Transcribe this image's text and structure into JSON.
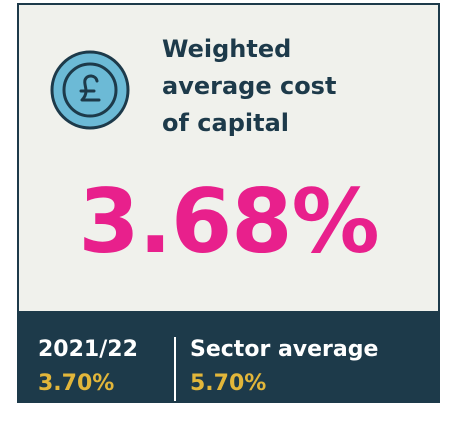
{
  "card": {
    "title_lines": [
      "Weighted",
      "average cost",
      "of capital"
    ],
    "headline": "3.68%",
    "stats": [
      {
        "label": "2021/22",
        "value": "3.70%"
      },
      {
        "label": "Sector average",
        "value": "5.70%"
      }
    ]
  }
}
